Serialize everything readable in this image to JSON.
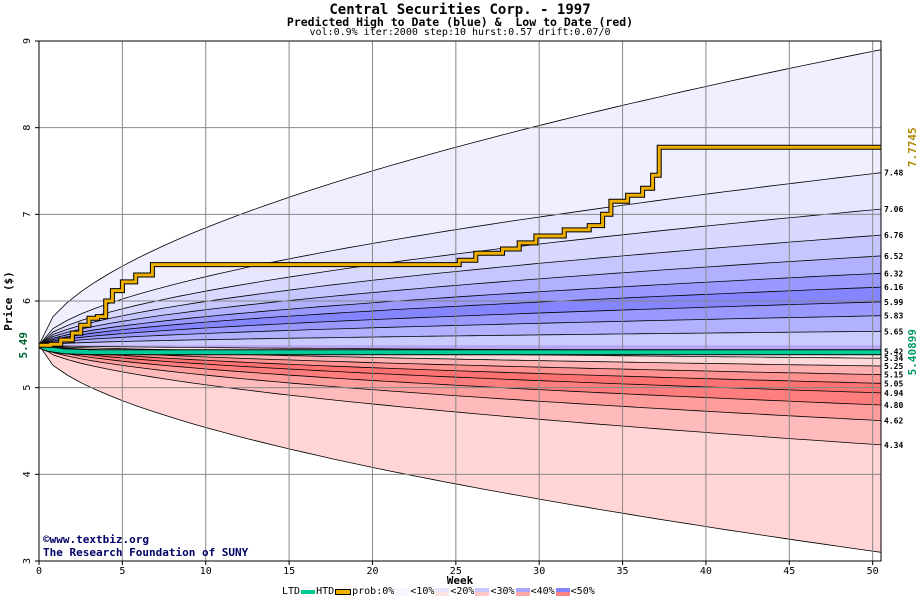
{
  "header": {
    "title": "Central Securities Corp. - 1997",
    "subtitle": "Predicted High to Date (blue) &  Low to Date (red)",
    "params": "vol:0.9% iter:2000 step:10 hurst:0.57 drift:0.07/0"
  },
  "credit": {
    "line1": "www.textbiz.org",
    "line2": "The Research Foundation of SUNY",
    "copyright_symbol": "©"
  },
  "legend": {
    "ltd": "LTD",
    "htd": "HTD",
    "prob": "prob:0%",
    "b10": "<10%",
    "b20": "<20%",
    "b30": "<30%",
    "b40": "<40%",
    "b50": "<50%"
  },
  "chart_data": {
    "type": "line",
    "title": "Central Securities Corp. - 1997",
    "subtitle": "Predicted High to Date (blue) &  Low to Date (red)",
    "xlabel": "Week",
    "ylabel": "Price ($)",
    "xlim": [
      0,
      50.5
    ],
    "ylim": [
      3,
      9
    ],
    "x_ticks": [
      0,
      5,
      10,
      15,
      20,
      25,
      30,
      35,
      40,
      45,
      50
    ],
    "y_ticks": [
      3,
      4,
      5,
      6,
      7,
      8,
      9
    ],
    "grid": true,
    "start_price": 5.49,
    "start_label": "5.49",
    "final_htd_label": "7.7745",
    "final_ltd_label": "5.40899",
    "final_htd": 7.7745,
    "final_ltd": 5.40899,
    "upper_quantiles": [
      {
        "label": "8.9+",
        "end": 8.9,
        "alpha": 0.08,
        "prob": "<10%"
      },
      {
        "label": "7.48",
        "end": 7.48,
        "alpha": 0.12,
        "prob": "<10%"
      },
      {
        "label": "7.06",
        "end": 7.06,
        "alpha": 0.19,
        "prob": "<20%"
      },
      {
        "label": "6.76",
        "end": 6.76,
        "alpha": 0.28,
        "prob": "<30%"
      },
      {
        "label": "6.52",
        "end": 6.52,
        "alpha": 0.38,
        "prob": "<40%"
      },
      {
        "label": "6.32",
        "end": 6.32,
        "alpha": 0.5,
        "prob": "<50%"
      },
      {
        "label": "6.16",
        "end": 6.16,
        "alpha": 0.6,
        "prob": "<50%"
      },
      {
        "label": "5.99",
        "end": 5.99,
        "alpha": 0.5,
        "prob": "<40%"
      },
      {
        "label": "5.83",
        "end": 5.83,
        "alpha": 0.38,
        "prob": "<30%"
      },
      {
        "label": "5.65",
        "end": 5.65,
        "alpha": 0.26,
        "prob": "<20%"
      },
      {
        "label": "5.42",
        "end": 5.42,
        "alpha": 0.16,
        "prob": "<10%"
      }
    ],
    "lower_quantiles": [
      {
        "label": "5.34",
        "end": 5.34,
        "alpha": 0.1,
        "prob": "<10%"
      },
      {
        "label": "5.25",
        "end": 5.25,
        "alpha": 0.3,
        "prob": "<20%"
      },
      {
        "label": "5.15",
        "end": 5.15,
        "alpha": 0.45,
        "prob": "<30%"
      },
      {
        "label": "5.05",
        "end": 5.05,
        "alpha": 0.6,
        "prob": "<50%"
      },
      {
        "label": "4.94",
        "end": 4.94,
        "alpha": 0.55,
        "prob": "<40%"
      },
      {
        "label": "4.80",
        "end": 4.8,
        "alpha": 0.4,
        "prob": "<30%"
      },
      {
        "label": "4.62",
        "end": 4.62,
        "alpha": 0.25,
        "prob": "<20%"
      },
      {
        "label": "4.34",
        "end": 4.34,
        "alpha": 0.12,
        "prob": "<10%"
      },
      {
        "label": "3.1-",
        "end": 3.1,
        "alpha": 0.07,
        "prob": "<10%"
      }
    ],
    "htd_path": [
      [
        0,
        5.49
      ],
      [
        0.7,
        5.5
      ],
      [
        1.3,
        5.55
      ],
      [
        2,
        5.63
      ],
      [
        2.5,
        5.72
      ],
      [
        3,
        5.8
      ],
      [
        3.5,
        5.82
      ],
      [
        4,
        6.0
      ],
      [
        4.4,
        6.12
      ],
      [
        5,
        6.22
      ],
      [
        5.8,
        6.3
      ],
      [
        6.8,
        6.42
      ],
      [
        24.5,
        6.42
      ],
      [
        25.2,
        6.47
      ],
      [
        26.2,
        6.55
      ],
      [
        27.8,
        6.6
      ],
      [
        28.8,
        6.67
      ],
      [
        29.8,
        6.75
      ],
      [
        31.5,
        6.82
      ],
      [
        33,
        6.87
      ],
      [
        33.8,
        7.0
      ],
      [
        34.3,
        7.15
      ],
      [
        35.3,
        7.22
      ],
      [
        36.2,
        7.3
      ],
      [
        36.8,
        7.45
      ],
      [
        37.2,
        7.7745
      ],
      [
        50.5,
        7.7745
      ]
    ],
    "ltd_path": [
      [
        0,
        5.49
      ],
      [
        0.5,
        5.45
      ],
      [
        1.5,
        5.42
      ],
      [
        3,
        5.41
      ],
      [
        7,
        5.408
      ],
      [
        50.5,
        5.40899
      ]
    ]
  },
  "colors": {
    "upper_band": "#3333ff",
    "lower_band": "#ff2020",
    "htd": "#f0b000",
    "ltd": "#00cc99",
    "label_start": "#006633",
    "label_htd": "#b08800",
    "label_ltd": "#009966",
    "credit": "#000066"
  }
}
